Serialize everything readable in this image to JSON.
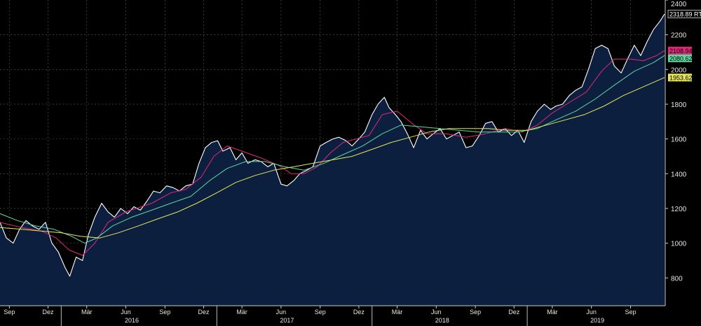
{
  "chart_data": {
    "type": "area",
    "title": "",
    "xlabel": "",
    "ylabel": "",
    "ylim": [
      640,
      2400
    ],
    "y_ticks": [
      800,
      1000,
      1200,
      1400,
      1600,
      1800,
      2000,
      2200,
      2400
    ],
    "x_range": [
      "2015-08-10",
      "2019-11-20"
    ],
    "x_ticks": [
      {
        "date": "2015-09-01",
        "label": "Sep"
      },
      {
        "date": "2015-12-01",
        "label": "Dez"
      },
      {
        "date": "2016-03-01",
        "label": "Mär"
      },
      {
        "date": "2016-06-01",
        "label": "Jun"
      },
      {
        "date": "2016-09-01",
        "label": "Sep"
      },
      {
        "date": "2016-12-01",
        "label": "Dez"
      },
      {
        "date": "2017-03-01",
        "label": "Mär"
      },
      {
        "date": "2017-06-01",
        "label": "Jun"
      },
      {
        "date": "2017-09-01",
        "label": "Sep"
      },
      {
        "date": "2017-12-01",
        "label": "Dez"
      },
      {
        "date": "2018-03-01",
        "label": "Mär"
      },
      {
        "date": "2018-06-01",
        "label": "Jun"
      },
      {
        "date": "2018-09-01",
        "label": "Sep"
      },
      {
        "date": "2018-12-01",
        "label": "Dez"
      },
      {
        "date": "2019-03-01",
        "label": "Mär"
      },
      {
        "date": "2019-06-01",
        "label": "Jun"
      },
      {
        "date": "2019-09-01",
        "label": "Sep"
      }
    ],
    "year_labels": [
      {
        "date": "2016-06-15",
        "label": "2016"
      },
      {
        "date": "2017-06-15",
        "label": "2017"
      },
      {
        "date": "2018-06-15",
        "label": "2018"
      },
      {
        "date": "2019-06-15",
        "label": "2019"
      }
    ],
    "year_separators": [
      "2016-01-01",
      "2017-01-01",
      "2018-01-01",
      "2019-01-01"
    ],
    "grid": true,
    "series": [
      {
        "name": "RTS",
        "color": "#ffffff",
        "fill": "#0c1f3e",
        "last_value_label": "2318.89 RTS",
        "points": [
          [
            "2015-08-10",
            1120
          ],
          [
            "2015-08-25",
            1030
          ],
          [
            "2015-09-10",
            1000
          ],
          [
            "2015-09-25",
            1080
          ],
          [
            "2015-10-10",
            1130
          ],
          [
            "2015-10-25",
            1100
          ],
          [
            "2015-11-10",
            1080
          ],
          [
            "2015-11-25",
            1120
          ],
          [
            "2015-12-10",
            1000
          ],
          [
            "2015-12-25",
            950
          ],
          [
            "2016-01-10",
            860
          ],
          [
            "2016-01-21",
            810
          ],
          [
            "2016-02-05",
            920
          ],
          [
            "2016-02-20",
            900
          ],
          [
            "2016-03-05",
            1050
          ],
          [
            "2016-03-20",
            1150
          ],
          [
            "2016-04-05",
            1230
          ],
          [
            "2016-04-20",
            1180
          ],
          [
            "2016-05-05",
            1150
          ],
          [
            "2016-05-20",
            1200
          ],
          [
            "2016-06-05",
            1170
          ],
          [
            "2016-06-20",
            1210
          ],
          [
            "2016-07-05",
            1190
          ],
          [
            "2016-07-20",
            1240
          ],
          [
            "2016-08-05",
            1300
          ],
          [
            "2016-08-20",
            1290
          ],
          [
            "2016-09-05",
            1330
          ],
          [
            "2016-09-20",
            1320
          ],
          [
            "2016-10-05",
            1300
          ],
          [
            "2016-10-20",
            1330
          ],
          [
            "2016-11-05",
            1340
          ],
          [
            "2016-11-20",
            1460
          ],
          [
            "2016-12-05",
            1550
          ],
          [
            "2016-12-20",
            1580
          ],
          [
            "2017-01-03",
            1590
          ],
          [
            "2017-01-15",
            1530
          ],
          [
            "2017-02-01",
            1550
          ],
          [
            "2017-02-15",
            1480
          ],
          [
            "2017-03-01",
            1520
          ],
          [
            "2017-03-15",
            1460
          ],
          [
            "2017-04-01",
            1480
          ],
          [
            "2017-04-15",
            1470
          ],
          [
            "2017-05-01",
            1440
          ],
          [
            "2017-05-15",
            1460
          ],
          [
            "2017-06-01",
            1340
          ],
          [
            "2017-06-15",
            1330
          ],
          [
            "2017-07-01",
            1360
          ],
          [
            "2017-07-15",
            1400
          ],
          [
            "2017-08-01",
            1420
          ],
          [
            "2017-08-15",
            1440
          ],
          [
            "2017-09-01",
            1560
          ],
          [
            "2017-09-15",
            1580
          ],
          [
            "2017-10-01",
            1600
          ],
          [
            "2017-10-15",
            1610
          ],
          [
            "2017-11-01",
            1590
          ],
          [
            "2017-11-15",
            1560
          ],
          [
            "2017-12-01",
            1600
          ],
          [
            "2017-12-15",
            1640
          ],
          [
            "2018-01-01",
            1740
          ],
          [
            "2018-01-15",
            1800
          ],
          [
            "2018-01-30",
            1840
          ],
          [
            "2018-02-10",
            1780
          ],
          [
            "2018-02-25",
            1740
          ],
          [
            "2018-03-10",
            1700
          ],
          [
            "2018-03-25",
            1630
          ],
          [
            "2018-04-09",
            1550
          ],
          [
            "2018-04-25",
            1650
          ],
          [
            "2018-05-10",
            1600
          ],
          [
            "2018-05-25",
            1630
          ],
          [
            "2018-06-10",
            1660
          ],
          [
            "2018-06-25",
            1600
          ],
          [
            "2018-07-10",
            1620
          ],
          [
            "2018-07-25",
            1640
          ],
          [
            "2018-08-10",
            1550
          ],
          [
            "2018-08-25",
            1560
          ],
          [
            "2018-09-10",
            1620
          ],
          [
            "2018-09-25",
            1690
          ],
          [
            "2018-10-10",
            1700
          ],
          [
            "2018-10-25",
            1640
          ],
          [
            "2018-11-10",
            1660
          ],
          [
            "2018-11-25",
            1620
          ],
          [
            "2018-12-10",
            1650
          ],
          [
            "2018-12-25",
            1580
          ],
          [
            "2019-01-10",
            1700
          ],
          [
            "2019-01-25",
            1760
          ],
          [
            "2019-02-10",
            1800
          ],
          [
            "2019-02-25",
            1770
          ],
          [
            "2019-03-10",
            1790
          ],
          [
            "2019-03-25",
            1800
          ],
          [
            "2019-04-10",
            1850
          ],
          [
            "2019-04-25",
            1880
          ],
          [
            "2019-05-10",
            1900
          ],
          [
            "2019-05-25",
            2000
          ],
          [
            "2019-06-10",
            2120
          ],
          [
            "2019-06-25",
            2140
          ],
          [
            "2019-07-10",
            2120
          ],
          [
            "2019-07-25",
            2020
          ],
          [
            "2019-08-10",
            1980
          ],
          [
            "2019-08-25",
            2060
          ],
          [
            "2019-09-10",
            2140
          ],
          [
            "2019-09-25",
            2080
          ],
          [
            "2019-10-10",
            2160
          ],
          [
            "2019-10-25",
            2230
          ],
          [
            "2019-11-10",
            2280
          ],
          [
            "2019-11-20",
            2318.89
          ]
        ]
      },
      {
        "name": "",
        "color": "#e0287a",
        "last_value_label": "2108.94",
        "points": [
          [
            "2015-08-10",
            1120
          ],
          [
            "2015-10-01",
            1090
          ],
          [
            "2015-11-15",
            1070
          ],
          [
            "2015-12-20",
            1030
          ],
          [
            "2016-01-20",
            960
          ],
          [
            "2016-02-20",
            930
          ],
          [
            "2016-03-20",
            1000
          ],
          [
            "2016-04-20",
            1120
          ],
          [
            "2016-06-01",
            1180
          ],
          [
            "2016-08-01",
            1230
          ],
          [
            "2016-09-15",
            1290
          ],
          [
            "2016-10-20",
            1310
          ],
          [
            "2016-11-25",
            1380
          ],
          [
            "2016-12-25",
            1500
          ],
          [
            "2017-01-25",
            1560
          ],
          [
            "2017-03-01",
            1530
          ],
          [
            "2017-04-15",
            1490
          ],
          [
            "2017-05-25",
            1450
          ],
          [
            "2017-06-25",
            1400
          ],
          [
            "2017-07-25",
            1400
          ],
          [
            "2017-08-25",
            1440
          ],
          [
            "2017-09-25",
            1520
          ],
          [
            "2017-10-25",
            1580
          ],
          [
            "2017-11-25",
            1600
          ],
          [
            "2017-12-25",
            1620
          ],
          [
            "2018-01-25",
            1740
          ],
          [
            "2018-03-01",
            1760
          ],
          [
            "2018-04-10",
            1680
          ],
          [
            "2018-05-10",
            1630
          ],
          [
            "2018-06-25",
            1630
          ],
          [
            "2018-08-10",
            1610
          ],
          [
            "2018-09-25",
            1630
          ],
          [
            "2018-11-10",
            1660
          ],
          [
            "2018-12-20",
            1640
          ],
          [
            "2019-01-25",
            1680
          ],
          [
            "2019-03-01",
            1750
          ],
          [
            "2019-04-10",
            1810
          ],
          [
            "2019-05-20",
            1870
          ],
          [
            "2019-06-25",
            1990
          ],
          [
            "2019-07-25",
            2060
          ],
          [
            "2019-09-01",
            2060
          ],
          [
            "2019-10-01",
            2050
          ],
          [
            "2019-11-01",
            2080
          ],
          [
            "2019-11-20",
            2108.94
          ]
        ]
      },
      {
        "name": "",
        "color": "#5fd6a0",
        "last_value_label": "2080.62",
        "points": [
          [
            "2015-08-10",
            1170
          ],
          [
            "2015-09-20",
            1130
          ],
          [
            "2015-11-01",
            1100
          ],
          [
            "2015-12-15",
            1080
          ],
          [
            "2016-01-25",
            1040
          ],
          [
            "2016-02-25",
            1000
          ],
          [
            "2016-03-25",
            1030
          ],
          [
            "2016-05-01",
            1100
          ],
          [
            "2016-06-15",
            1150
          ],
          [
            "2016-08-01",
            1190
          ],
          [
            "2016-09-15",
            1230
          ],
          [
            "2016-11-01",
            1270
          ],
          [
            "2016-12-15",
            1360
          ],
          [
            "2017-01-25",
            1430
          ],
          [
            "2017-03-10",
            1470
          ],
          [
            "2017-04-25",
            1470
          ],
          [
            "2017-06-10",
            1440
          ],
          [
            "2017-07-25",
            1420
          ],
          [
            "2017-09-10",
            1460
          ],
          [
            "2017-10-25",
            1510
          ],
          [
            "2017-12-10",
            1560
          ],
          [
            "2018-01-25",
            1630
          ],
          [
            "2018-03-10",
            1680
          ],
          [
            "2018-04-25",
            1670
          ],
          [
            "2018-06-10",
            1660
          ],
          [
            "2018-07-25",
            1650
          ],
          [
            "2018-09-10",
            1640
          ],
          [
            "2018-10-25",
            1640
          ],
          [
            "2018-12-10",
            1640
          ],
          [
            "2019-01-25",
            1660
          ],
          [
            "2019-03-10",
            1710
          ],
          [
            "2019-04-25",
            1760
          ],
          [
            "2019-06-10",
            1830
          ],
          [
            "2019-07-25",
            1910
          ],
          [
            "2019-09-10",
            1990
          ],
          [
            "2019-10-25",
            2040
          ],
          [
            "2019-11-20",
            2080.62
          ]
        ]
      },
      {
        "name": "",
        "color": "#e6e65a",
        "last_value_label": "1953.62",
        "points": [
          [
            "2015-08-10",
            1090
          ],
          [
            "2015-10-01",
            1080
          ],
          [
            "2015-11-15",
            1070
          ],
          [
            "2016-01-01",
            1060
          ],
          [
            "2016-02-15",
            1040
          ],
          [
            "2016-04-01",
            1030
          ],
          [
            "2016-05-15",
            1060
          ],
          [
            "2016-07-01",
            1100
          ],
          [
            "2016-08-15",
            1140
          ],
          [
            "2016-10-01",
            1180
          ],
          [
            "2016-11-15",
            1230
          ],
          [
            "2017-01-01",
            1290
          ],
          [
            "2017-02-15",
            1350
          ],
          [
            "2017-04-01",
            1390
          ],
          [
            "2017-05-15",
            1420
          ],
          [
            "2017-07-01",
            1440
          ],
          [
            "2017-08-15",
            1460
          ],
          [
            "2017-10-01",
            1480
          ],
          [
            "2017-11-15",
            1500
          ],
          [
            "2018-01-01",
            1540
          ],
          [
            "2018-02-15",
            1580
          ],
          [
            "2018-04-01",
            1610
          ],
          [
            "2018-05-15",
            1640
          ],
          [
            "2018-07-01",
            1660
          ],
          [
            "2018-08-15",
            1660
          ],
          [
            "2018-10-01",
            1660
          ],
          [
            "2018-11-15",
            1650
          ],
          [
            "2019-01-01",
            1650
          ],
          [
            "2019-02-15",
            1680
          ],
          [
            "2019-04-01",
            1710
          ],
          [
            "2019-05-15",
            1740
          ],
          [
            "2019-07-01",
            1790
          ],
          [
            "2019-08-15",
            1850
          ],
          [
            "2019-10-01",
            1900
          ],
          [
            "2019-11-20",
            1953.62
          ]
        ]
      }
    ]
  }
}
